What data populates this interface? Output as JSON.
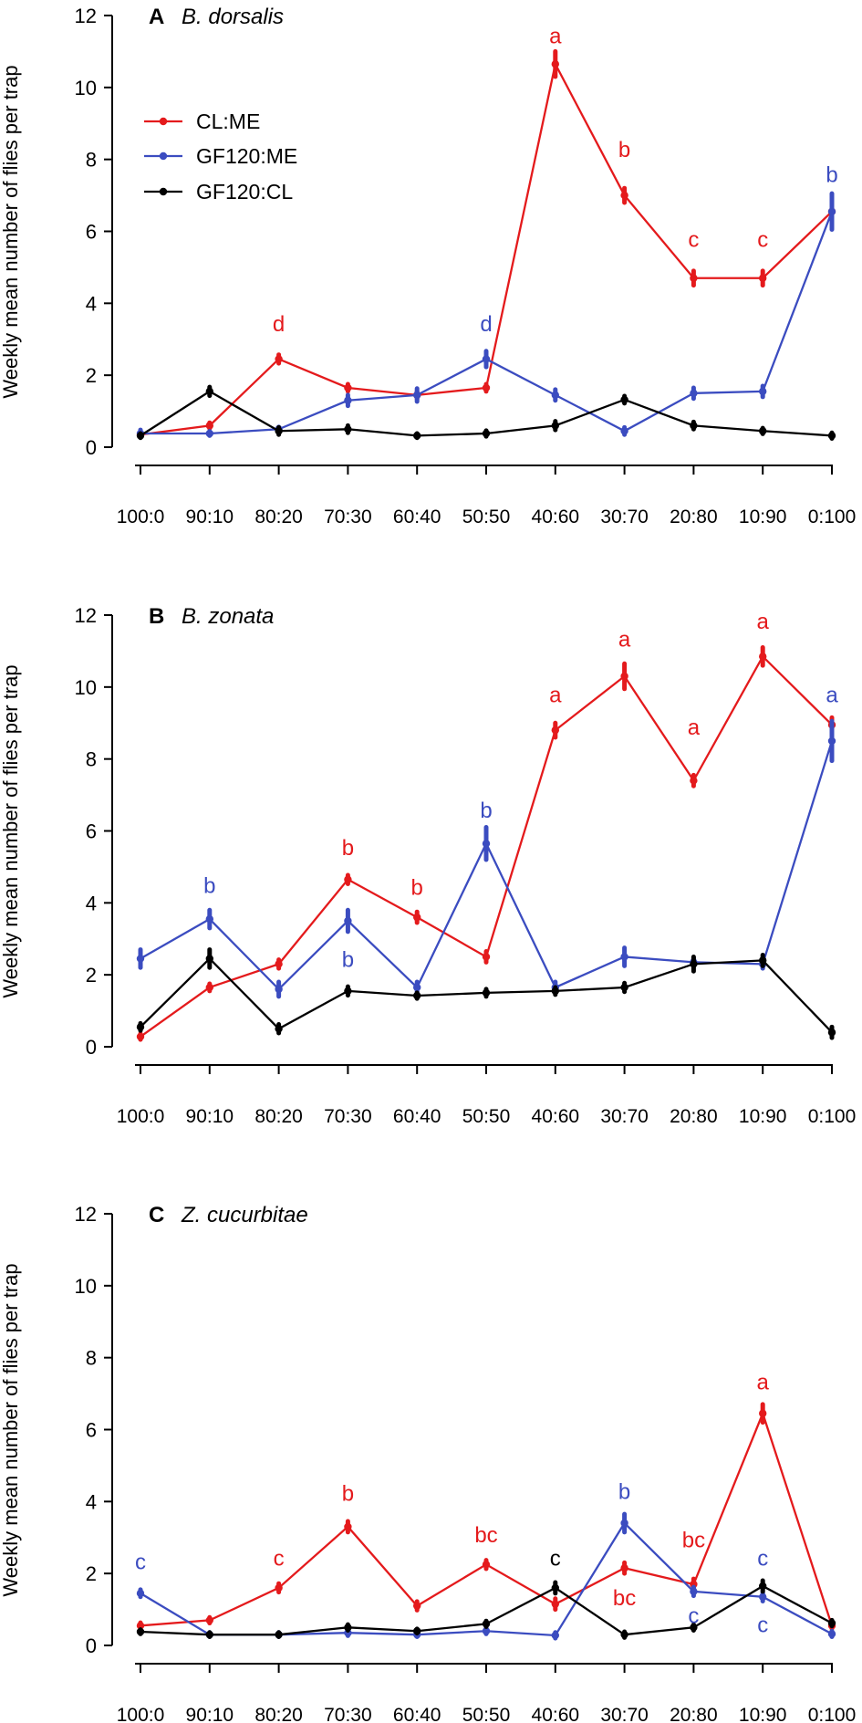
{
  "x_categories": [
    "100:0",
    "90:10",
    "80:20",
    "70:30",
    "60:40",
    "50:50",
    "40:60",
    "30:70",
    "20:80",
    "10:90",
    "0:100"
  ],
  "ylabel": "Weekly mean number of flies per trap",
  "y_ticks": [
    "0",
    "2",
    "4",
    "6",
    "8",
    "10",
    "12"
  ],
  "colors": {
    "CL:ME": "#e41a1c",
    "GF120:ME": "#3b4cc0",
    "GF120:CL": "#000000"
  },
  "legend": [
    "CL:ME",
    "GF120:ME",
    "GF120:CL"
  ],
  "chart_data": [
    {
      "type": "line",
      "panel": "A",
      "title": "B. dorsalis",
      "ylim": [
        0,
        12
      ],
      "categories": [
        "100:0",
        "90:10",
        "80:20",
        "70:30",
        "60:40",
        "50:50",
        "40:60",
        "30:70",
        "20:80",
        "10:90",
        "0:100"
      ],
      "series": [
        {
          "name": "CL:ME",
          "values": [
            0.35,
            0.6,
            2.45,
            1.65,
            1.45,
            1.65,
            10.65,
            7.0,
            4.7,
            4.7,
            6.55
          ],
          "errors": [
            0.06,
            0.08,
            0.12,
            0.1,
            0.1,
            0.1,
            0.35,
            0.2,
            0.2,
            0.2,
            0.25
          ]
        },
        {
          "name": "GF120:ME",
          "values": [
            0.38,
            0.38,
            0.5,
            1.3,
            1.45,
            2.45,
            1.45,
            0.45,
            1.5,
            1.55,
            6.55
          ],
          "errors": [
            0.1,
            0.06,
            0.06,
            0.15,
            0.18,
            0.22,
            0.15,
            0.1,
            0.15,
            0.15,
            0.5
          ]
        },
        {
          "name": "GF120:CL",
          "values": [
            0.32,
            1.55,
            0.45,
            0.5,
            0.32,
            0.38,
            0.6,
            1.32,
            0.6,
            0.45,
            0.32
          ],
          "errors": [
            0.06,
            0.12,
            0.1,
            0.1,
            0.06,
            0.08,
            0.12,
            0.1,
            0.1,
            0.08,
            0.08
          ]
        }
      ],
      "annotations": [
        {
          "series": "CL:ME",
          "x": "80:20",
          "y": 3.45,
          "text": "d"
        },
        {
          "series": "GF120:ME",
          "x": "50:50",
          "y": 3.45,
          "text": "d"
        },
        {
          "series": "CL:ME",
          "x": "40:60",
          "y": 11.45,
          "text": "a"
        },
        {
          "series": "CL:ME",
          "x": "30:70",
          "y": 8.3,
          "text": "b"
        },
        {
          "series": "CL:ME",
          "x": "20:80",
          "y": 5.8,
          "text": "c"
        },
        {
          "series": "CL:ME",
          "x": "10:90",
          "y": 5.8,
          "text": "c"
        },
        {
          "series": "GF120:ME",
          "x": "0:100",
          "y": 7.6,
          "text": "b"
        }
      ]
    },
    {
      "type": "line",
      "panel": "B",
      "title": "B. zonata",
      "ylim": [
        0,
        12
      ],
      "categories": [
        "100:0",
        "90:10",
        "80:20",
        "70:30",
        "60:40",
        "50:50",
        "40:60",
        "30:70",
        "20:80",
        "10:90",
        "0:100"
      ],
      "series": [
        {
          "name": "CL:ME",
          "values": [
            0.28,
            1.65,
            2.3,
            4.65,
            3.6,
            2.5,
            8.8,
            10.3,
            7.4,
            10.85,
            8.95
          ],
          "errors": [
            0.08,
            0.1,
            0.12,
            0.12,
            0.15,
            0.15,
            0.2,
            0.35,
            0.15,
            0.25,
            0.2
          ]
        },
        {
          "name": "GF120:ME",
          "values": [
            2.45,
            3.55,
            1.6,
            3.5,
            1.65,
            5.65,
            1.65,
            2.5,
            2.35,
            2.3,
            8.5
          ],
          "errors": [
            0.25,
            0.25,
            0.2,
            0.3,
            0.15,
            0.45,
            0.15,
            0.25,
            0.12,
            0.12,
            0.55
          ]
        },
        {
          "name": "GF120:CL",
          "values": [
            0.55,
            2.45,
            0.5,
            1.55,
            1.42,
            1.5,
            1.55,
            1.65,
            2.3,
            2.4,
            0.4
          ],
          "errors": [
            0.1,
            0.25,
            0.12,
            0.12,
            0.08,
            0.1,
            0.1,
            0.12,
            0.2,
            0.15,
            0.15
          ]
        }
      ],
      "annotations": [
        {
          "series": "GF120:ME",
          "x": "90:10",
          "y": 4.5,
          "text": "b"
        },
        {
          "series": "CL:ME",
          "x": "70:30",
          "y": 5.55,
          "text": "b"
        },
        {
          "series": "GF120:ME",
          "x": "70:30",
          "y": 2.45,
          "text": "b"
        },
        {
          "series": "CL:ME",
          "x": "60:40",
          "y": 4.45,
          "text": "b"
        },
        {
          "series": "GF120:ME",
          "x": "50:50",
          "y": 6.6,
          "text": "b"
        },
        {
          "series": "CL:ME",
          "x": "40:60",
          "y": 9.8,
          "text": "a"
        },
        {
          "series": "CL:ME",
          "x": "30:70",
          "y": 11.35,
          "text": "a"
        },
        {
          "series": "CL:ME",
          "x": "20:80",
          "y": 8.9,
          "text": "a"
        },
        {
          "series": "CL:ME",
          "x": "10:90",
          "y": 11.85,
          "text": "a"
        },
        {
          "series": "GF120:ME",
          "x": "0:100",
          "y": 9.8,
          "text": "a"
        }
      ]
    },
    {
      "type": "line",
      "panel": "C",
      "title": "Z. cucurbitae",
      "ylim": [
        0,
        12
      ],
      "categories": [
        "100:0",
        "90:10",
        "80:20",
        "70:30",
        "60:40",
        "50:50",
        "40:60",
        "30:70",
        "20:80",
        "10:90",
        "0:100"
      ],
      "series": [
        {
          "name": "CL:ME",
          "values": [
            0.55,
            0.7,
            1.6,
            3.3,
            1.1,
            2.25,
            1.15,
            2.15,
            1.7,
            6.45,
            0.55
          ],
          "errors": [
            0.08,
            0.08,
            0.12,
            0.15,
            0.12,
            0.12,
            0.15,
            0.15,
            0.15,
            0.25,
            0.08
          ]
        },
        {
          "name": "GF120:ME",
          "values": [
            1.45,
            0.3,
            0.3,
            0.35,
            0.3,
            0.4,
            0.28,
            3.4,
            1.5,
            1.35,
            0.32
          ],
          "errors": [
            0.1,
            0.06,
            0.06,
            0.08,
            0.06,
            0.08,
            0.08,
            0.25,
            0.12,
            0.12,
            0.08
          ]
        },
        {
          "name": "GF120:CL",
          "values": [
            0.38,
            0.3,
            0.3,
            0.5,
            0.4,
            0.6,
            1.6,
            0.3,
            0.5,
            1.65,
            0.62
          ],
          "errors": [
            0.06,
            0.06,
            0.06,
            0.08,
            0.06,
            0.08,
            0.15,
            0.08,
            0.08,
            0.15,
            0.08
          ]
        }
      ],
      "annotations": [
        {
          "series": "GF120:ME",
          "x": "100:0",
          "y": 2.35,
          "text": "c"
        },
        {
          "series": "CL:ME",
          "x": "80:20",
          "y": 2.45,
          "text": "c"
        },
        {
          "series": "CL:ME",
          "x": "70:30",
          "y": 4.25,
          "text": "b"
        },
        {
          "series": "CL:ME",
          "x": "50:50",
          "y": 3.1,
          "text": "bc"
        },
        {
          "series": "GF120:CL",
          "x": "40:60",
          "y": 2.45,
          "text": "c"
        },
        {
          "series": "GF120:ME",
          "x": "30:70",
          "y": 4.3,
          "text": "b"
        },
        {
          "series": "CL:ME",
          "x": "30:70",
          "y": 1.35,
          "text": "bc"
        },
        {
          "series": "CL:ME",
          "x": "20:80",
          "y": 2.95,
          "text": "bc"
        },
        {
          "series": "GF120:ME",
          "x": "20:80",
          "y": 0.85,
          "text": "c"
        },
        {
          "series": "CL:ME",
          "x": "10:90",
          "y": 7.35,
          "text": "a"
        },
        {
          "series": "GF120:ME",
          "x": "10:90",
          "y": 2.45,
          "text": "c"
        },
        {
          "series": "GF120:ME",
          "x": "10:90",
          "y": 0.6,
          "text": "c"
        }
      ]
    }
  ]
}
